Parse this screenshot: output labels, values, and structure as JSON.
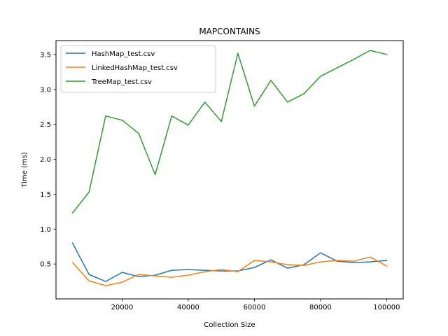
{
  "chart_data": {
    "type": "line",
    "title": "MAPCONTAINS",
    "xlabel": "Collection Size",
    "ylabel": "Time (ms)",
    "xlim": [
      0,
      105000
    ],
    "ylim": [
      0.0,
      3.7
    ],
    "xticks": [
      20000,
      40000,
      60000,
      80000,
      100000
    ],
    "yticks": [
      0.5,
      1.0,
      1.5,
      2.0,
      2.5,
      3.0,
      3.5
    ],
    "xtick_labels": [
      "20000",
      "40000",
      "60000",
      "80000",
      "100000"
    ],
    "ytick_labels": [
      "0.5",
      "1.0",
      "1.5",
      "2.0",
      "2.5",
      "3.0",
      "3.5"
    ],
    "grid": false,
    "legend_position": "top-left",
    "x": [
      5000,
      10000,
      15000,
      20000,
      25000,
      30000,
      35000,
      40000,
      45000,
      50000,
      55000,
      60000,
      65000,
      70000,
      75000,
      80000,
      85000,
      90000,
      95000,
      100000
    ],
    "series": [
      {
        "name": "HashMap_test.csv",
        "color": "#1f77b4",
        "values": [
          0.8,
          0.35,
          0.25,
          0.38,
          0.32,
          0.34,
          0.41,
          0.42,
          0.41,
          0.4,
          0.4,
          0.45,
          0.56,
          0.44,
          0.49,
          0.66,
          0.54,
          0.52,
          0.53,
          0.55
        ]
      },
      {
        "name": "LinkedHashMap_test.csv",
        "color": "#ff7f0e",
        "values": [
          0.52,
          0.26,
          0.19,
          0.24,
          0.35,
          0.33,
          0.31,
          0.34,
          0.39,
          0.42,
          0.39,
          0.55,
          0.53,
          0.49,
          0.48,
          0.53,
          0.55,
          0.54,
          0.6,
          0.47
        ]
      },
      {
        "name": "TreeMap_test.csv",
        "color": "#2ca02c",
        "values": [
          1.23,
          1.53,
          2.62,
          2.56,
          2.37,
          1.78,
          2.62,
          2.49,
          2.82,
          2.54,
          3.52,
          2.76,
          3.13,
          2.82,
          2.94,
          3.19,
          3.31,
          3.43,
          3.56,
          3.5
        ]
      }
    ]
  }
}
